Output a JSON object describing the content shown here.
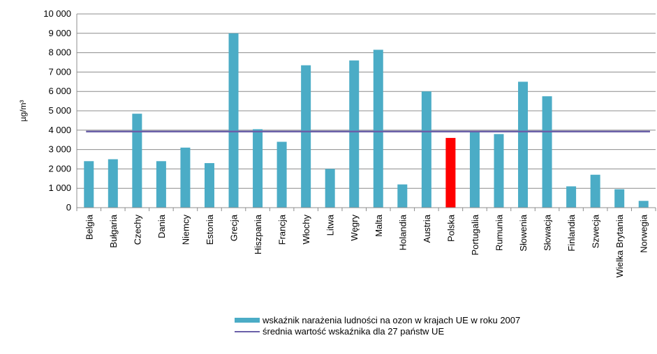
{
  "chart_data": {
    "type": "bar",
    "title": "",
    "xlabel": "",
    "ylabel": "µg/m³",
    "ylim": [
      0,
      10000
    ],
    "yticks": [
      0,
      1000,
      2000,
      3000,
      4000,
      5000,
      6000,
      7000,
      8000,
      9000,
      10000
    ],
    "ytick_labels": [
      "0",
      "1 000",
      "2 000",
      "3 000",
      "4 000",
      "5 000",
      "6 000",
      "7 000",
      "8 000",
      "9 000",
      "10 000"
    ],
    "grid": true,
    "categories": [
      "Belgia",
      "Bułgaria",
      "Czechy",
      "Dania",
      "Niemcy",
      "Estonia",
      "Grecja",
      "Hiszpania",
      "Francja",
      "Włochy",
      "Litwa",
      "Węgry",
      "Malta",
      "Holandia",
      "Austria",
      "Polska",
      "Portugalia",
      "Rumunia",
      "Słowenia",
      "Słowacja",
      "Finlandia",
      "Szwecja",
      "Wielka Brytania",
      "Norwegia"
    ],
    "series": [
      {
        "name": "wskaźnik narażenia ludności na ozon w krajach UE  w roku 2007",
        "type": "bar",
        "color": "#4BACC6",
        "highlight_color": "#FF0000",
        "highlight_category": "Polska",
        "values": [
          2400,
          2500,
          4850,
          2400,
          3100,
          2300,
          9000,
          4050,
          3400,
          7350,
          2000,
          7600,
          8150,
          1200,
          6000,
          3600,
          3900,
          3800,
          6500,
          5750,
          1100,
          1700,
          950,
          350
        ]
      },
      {
        "name": "średnia wartość wskaźnika dla 27 państw UE",
        "type": "line",
        "color": "#6A5FA8",
        "value": 3930
      }
    ],
    "legend_position": "bottom"
  }
}
